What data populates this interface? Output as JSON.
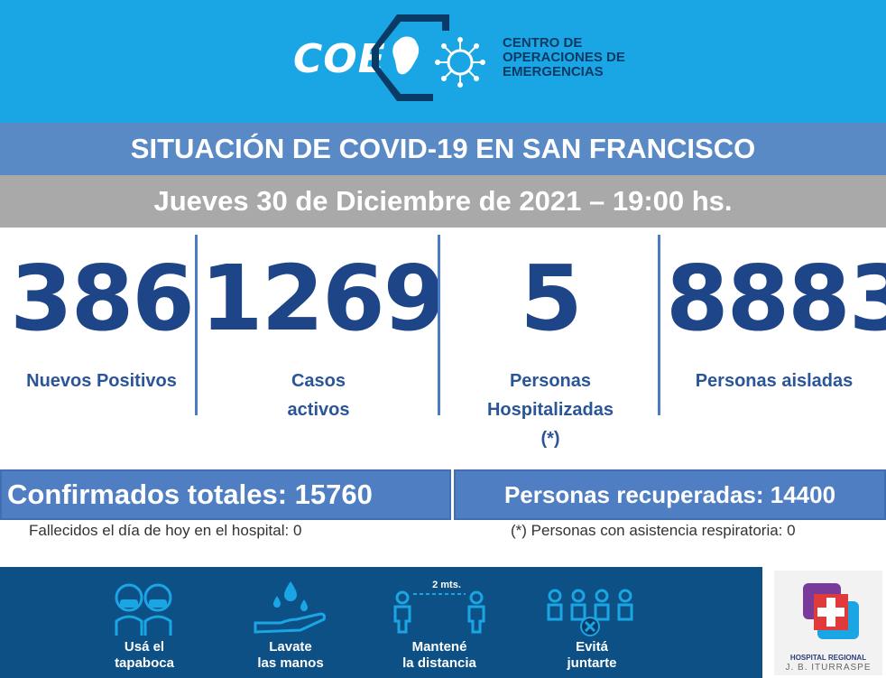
{
  "header": {
    "logo": "COE",
    "org_lines": [
      "CENTRO DE",
      "OPERACIONES DE",
      "EMERGENCIAS"
    ]
  },
  "title": "SITUACIÓN DE COVID-19 EN SAN FRANCISCO",
  "date": "Jueves 30 de Diciembre de 2021 – 19:00 hs.",
  "stats": [
    {
      "value": "386",
      "label": [
        "Nuevos Positivos"
      ]
    },
    {
      "value": "1269",
      "label": [
        "Casos",
        "activos"
      ]
    },
    {
      "value": "5",
      "label": [
        "Personas",
        "Hospitalizadas",
        "(*)"
      ]
    },
    {
      "value": "8883",
      "label": [
        "Personas aisladas"
      ]
    }
  ],
  "totals": {
    "confirmed": "Confirmados totales: 15760",
    "recovered": "Personas recuperadas: 14400"
  },
  "notes": {
    "deaths": "Fallecidos el día de hoy en el hospital: 0",
    "respiratory": "(*) Personas con asistencia respiratoria: 0"
  },
  "tips": [
    {
      "icon": "face-mask-icon",
      "label": [
        "Usá el",
        "tapaboca"
      ]
    },
    {
      "icon": "hand-wash-icon",
      "label": [
        "Lavate",
        "las manos"
      ]
    },
    {
      "icon": "social-distance-icon",
      "label": [
        "Mantené",
        "la distancia"
      ],
      "distance": "2 mts."
    },
    {
      "icon": "no-gathering-icon",
      "label": [
        "Evitá",
        "juntarte"
      ]
    }
  ],
  "hospital": {
    "name_line1": "HOSPITAL REGIONAL",
    "name_line2": "J. B. ITURRASPE"
  },
  "colors": {
    "header": "#1aa6e4",
    "title_band": "#5a8ac6",
    "date_band": "#a9a9a9",
    "numbers": "#1e4587",
    "footer": "#0d5086"
  }
}
